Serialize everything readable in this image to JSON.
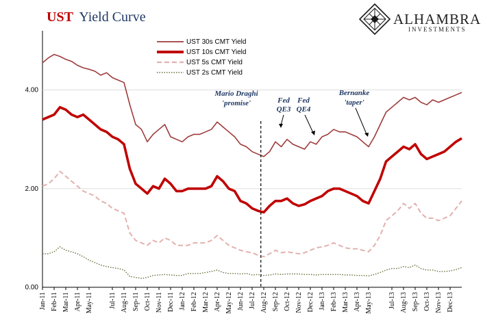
{
  "header": {
    "title_bold": "UST",
    "title_rest": "Yield Curve",
    "title_bold_color": "#c00000",
    "title_rest_color": "#1f3864"
  },
  "brand": {
    "name": "ALHAMBRA",
    "sub": "INVESTMENTS",
    "logo_icon": "diamond-lattice-icon"
  },
  "chart_data": {
    "type": "line",
    "ylim": [
      0,
      5.2
    ],
    "yticks": [
      "4.00",
      "2.00",
      "0.00"
    ],
    "ytick_values": [
      4,
      2,
      0
    ],
    "xlabels": [
      "Jan-11",
      "Feb-11",
      "Mar-11",
      "Apr-11",
      "May-11",
      "Jul-11",
      "Aug-11",
      "Sep-11",
      "Oct-11",
      "Nov-11",
      "Dec-11",
      "Jan-12",
      "Feb-12",
      "Mar-12",
      "Apr-12",
      "May-12",
      "Jun-12",
      "Jul-12",
      "Aug-12",
      "Sep-12",
      "Oct-12",
      "Nov-12",
      "Dec-12",
      "Jan-13",
      "Feb-13",
      "Mar-13",
      "Apr-13",
      "May-13",
      "Jul-13",
      "Aug-13",
      "Sep-13",
      "Oct-13",
      "Nov-13",
      "Dec-13"
    ],
    "xlabel_months": [
      0,
      1,
      2,
      3,
      4,
      6,
      7,
      8,
      9,
      10,
      11,
      12,
      13,
      14,
      15,
      16,
      17,
      18,
      19,
      20,
      21,
      22,
      23,
      24,
      25,
      26,
      27,
      28,
      30,
      31,
      32,
      33,
      34,
      35
    ],
    "x_months": [
      0,
      0.5,
      1,
      1.5,
      2,
      2.5,
      3,
      3.5,
      4,
      4.5,
      5,
      5.5,
      6,
      6.5,
      7,
      7.5,
      8,
      8.5,
      9,
      9.5,
      10,
      10.5,
      11,
      11.5,
      12,
      12.5,
      13,
      13.5,
      14,
      14.5,
      15,
      15.5,
      16,
      16.5,
      17,
      17.5,
      18,
      18.5,
      19,
      19.5,
      20,
      20.5,
      21,
      21.5,
      22,
      22.5,
      23,
      23.5,
      24,
      24.5,
      25,
      25.5,
      26,
      26.5,
      27,
      27.5,
      28,
      28.5,
      29,
      29.5,
      30,
      30.5,
      31,
      31.5,
      32,
      32.5,
      33,
      33.5,
      34,
      34.5,
      35,
      35.5,
      36
    ],
    "series": [
      {
        "name": "UST 30s CMT Yield",
        "color": "#9e3a3a",
        "style": "solid-thin",
        "values": [
          4.55,
          4.65,
          4.72,
          4.68,
          4.62,
          4.58,
          4.5,
          4.45,
          4.42,
          4.38,
          4.3,
          4.35,
          4.25,
          4.2,
          4.15,
          3.7,
          3.3,
          3.2,
          2.95,
          3.1,
          3.2,
          3.3,
          3.05,
          3.0,
          2.95,
          3.05,
          3.1,
          3.1,
          3.15,
          3.2,
          3.35,
          3.25,
          3.15,
          3.05,
          2.9,
          2.85,
          2.75,
          2.7,
          2.65,
          2.75,
          2.95,
          2.85,
          3.0,
          2.9,
          2.85,
          2.8,
          2.95,
          2.9,
          3.05,
          3.1,
          3.2,
          3.15,
          3.15,
          3.1,
          3.05,
          2.95,
          2.85,
          3.05,
          3.3,
          3.55,
          3.65,
          3.75,
          3.85,
          3.8,
          3.85,
          3.75,
          3.7,
          3.8,
          3.75,
          3.8,
          3.85,
          3.9,
          3.95
        ]
      },
      {
        "name": "UST 10s CMT Yield",
        "color": "#c00000",
        "style": "solid-thick",
        "values": [
          3.4,
          3.45,
          3.5,
          3.65,
          3.6,
          3.5,
          3.45,
          3.5,
          3.4,
          3.3,
          3.2,
          3.15,
          3.05,
          3.0,
          2.9,
          2.4,
          2.1,
          2.0,
          1.9,
          2.05,
          2.0,
          2.2,
          2.1,
          1.95,
          1.95,
          2.0,
          2.0,
          2.0,
          2.0,
          2.05,
          2.25,
          2.15,
          2.0,
          1.95,
          1.75,
          1.7,
          1.6,
          1.55,
          1.52,
          1.65,
          1.75,
          1.75,
          1.8,
          1.7,
          1.65,
          1.68,
          1.75,
          1.8,
          1.85,
          1.95,
          2.0,
          2.0,
          1.95,
          1.9,
          1.85,
          1.75,
          1.7,
          1.95,
          2.2,
          2.55,
          2.65,
          2.75,
          2.85,
          2.8,
          2.9,
          2.7,
          2.6,
          2.65,
          2.7,
          2.75,
          2.85,
          2.95,
          3.02
        ]
      },
      {
        "name": "UST 5s CMT Yield",
        "color": "#e2b1ae",
        "style": "dashed",
        "values": [
          2.05,
          2.1,
          2.2,
          2.35,
          2.25,
          2.15,
          2.05,
          1.95,
          1.9,
          1.85,
          1.75,
          1.7,
          1.6,
          1.55,
          1.5,
          1.1,
          0.95,
          0.9,
          0.85,
          0.95,
          0.9,
          1.0,
          0.95,
          0.85,
          0.85,
          0.85,
          0.9,
          0.9,
          0.9,
          0.95,
          1.05,
          0.95,
          0.85,
          0.8,
          0.75,
          0.72,
          0.7,
          0.65,
          0.62,
          0.68,
          0.75,
          0.7,
          0.72,
          0.7,
          0.68,
          0.7,
          0.75,
          0.8,
          0.82,
          0.85,
          0.9,
          0.85,
          0.8,
          0.78,
          0.78,
          0.75,
          0.72,
          0.85,
          1.05,
          1.35,
          1.45,
          1.55,
          1.7,
          1.6,
          1.7,
          1.5,
          1.4,
          1.4,
          1.35,
          1.4,
          1.45,
          1.6,
          1.75
        ]
      },
      {
        "name": "UST 2s CMT Yield",
        "color": "#6b6b3a",
        "style": "dotted",
        "values": [
          0.68,
          0.68,
          0.72,
          0.82,
          0.75,
          0.72,
          0.68,
          0.62,
          0.55,
          0.5,
          0.45,
          0.42,
          0.4,
          0.38,
          0.35,
          0.22,
          0.2,
          0.18,
          0.2,
          0.24,
          0.25,
          0.26,
          0.25,
          0.24,
          0.24,
          0.28,
          0.28,
          0.28,
          0.3,
          0.32,
          0.35,
          0.3,
          0.28,
          0.28,
          0.27,
          0.28,
          0.25,
          0.26,
          0.24,
          0.25,
          0.27,
          0.26,
          0.27,
          0.27,
          0.27,
          0.26,
          0.26,
          0.25,
          0.26,
          0.26,
          0.26,
          0.26,
          0.25,
          0.25,
          0.24,
          0.24,
          0.23,
          0.26,
          0.3,
          0.35,
          0.38,
          0.38,
          0.42,
          0.4,
          0.45,
          0.38,
          0.35,
          0.35,
          0.32,
          0.32,
          0.33,
          0.36,
          0.4
        ]
      }
    ],
    "event_line_month": 18.75,
    "annotations": [
      {
        "id": "draghi",
        "lines": [
          "Mario Draghi",
          "'promise'"
        ]
      },
      {
        "id": "qe3",
        "lines": [
          "Fed",
          "QE3"
        ]
      },
      {
        "id": "qe4",
        "lines": [
          "Fed",
          "QE4"
        ]
      },
      {
        "id": "taper",
        "lines": [
          "Bernanke",
          "'taper'"
        ]
      }
    ],
    "grid": true,
    "legend_position": "top-left"
  }
}
